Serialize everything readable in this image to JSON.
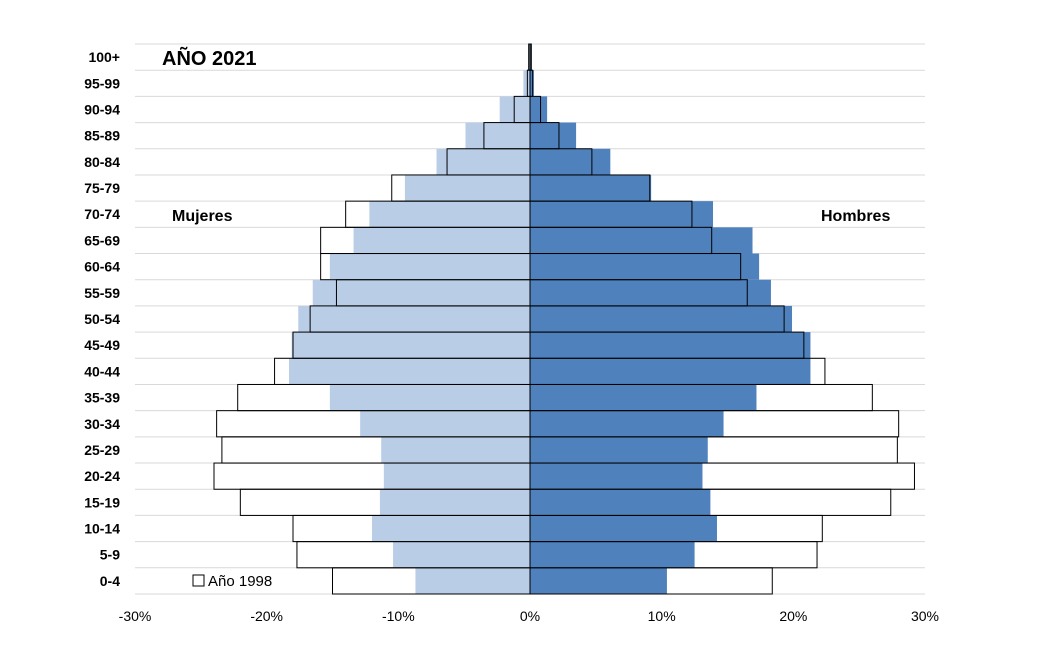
{
  "chart_data": {
    "type": "bar",
    "subtype": "population-pyramid",
    "title": "AÑO 2021",
    "left_label": "Mujeres",
    "right_label": "Hombres",
    "categories": [
      "0-4",
      "5-9",
      "10-14",
      "15-19",
      "20-24",
      "25-29",
      "30-34",
      "35-39",
      "40-44",
      "45-49",
      "50-54",
      "55-59",
      "60-64",
      "65-69",
      "70-74",
      "75-79",
      "80-84",
      "85-89",
      "90-94",
      "95-99",
      "100+"
    ],
    "xlim": [
      -30,
      30
    ],
    "x_ticks": [
      -30,
      -20,
      -10,
      0,
      10,
      20,
      30
    ],
    "x_tick_labels": [
      "-30%",
      "-20%",
      "-10%",
      "0%",
      "10%",
      "20%",
      "30%"
    ],
    "grid": true,
    "series": [
      {
        "name": "Año 1998",
        "role": "outline",
        "women": [
          -15.0,
          -17.7,
          -18.0,
          -22.0,
          -24.0,
          -23.4,
          -23.8,
          -22.2,
          -19.4,
          -18.0,
          -16.7,
          -14.7,
          -15.9,
          -15.9,
          -14.0,
          -10.5,
          -6.3,
          -3.5,
          -1.2,
          -0.2,
          -0.1
        ],
        "men": [
          18.4,
          21.8,
          22.2,
          27.4,
          29.2,
          27.9,
          28.0,
          26.0,
          22.4,
          20.8,
          19.3,
          16.5,
          16.0,
          13.8,
          12.3,
          9.1,
          4.7,
          2.2,
          0.8,
          0.2,
          0.1
        ]
      },
      {
        "name": "",
        "role": "filled",
        "women": [
          -8.7,
          -10.4,
          -12.0,
          -11.4,
          -11.1,
          -11.3,
          -12.9,
          -15.2,
          -18.3,
          -18.1,
          -17.6,
          -16.5,
          -15.2,
          -13.4,
          -12.2,
          -9.5,
          -7.1,
          -4.9,
          -2.3,
          -0.5,
          -0.1
        ],
        "men": [
          10.4,
          12.5,
          14.2,
          13.7,
          13.1,
          13.5,
          14.7,
          17.2,
          21.3,
          21.3,
          19.9,
          18.3,
          17.4,
          16.9,
          13.9,
          9.2,
          6.1,
          3.5,
          1.3,
          0.3,
          0.1
        ]
      }
    ],
    "legend": {
      "label": "Año 1998",
      "position": "bottom-left"
    },
    "colors": {
      "women_fill": "#b9cde6",
      "men_fill": "#4f81bd",
      "outline": "#000000",
      "grid": "#d9d9d9"
    }
  }
}
